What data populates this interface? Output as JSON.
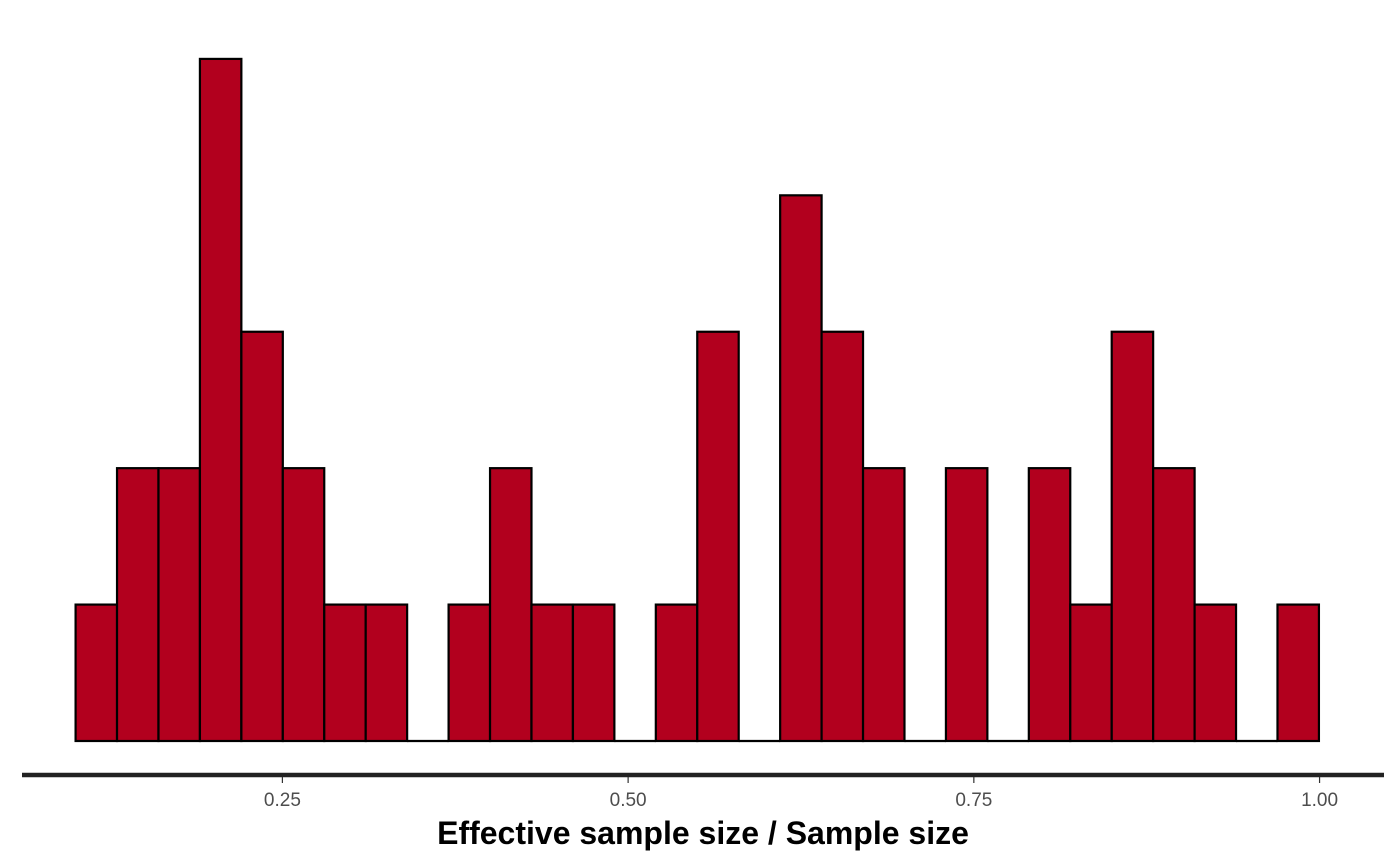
{
  "chart_data": {
    "type": "bar",
    "subtype": "histogram",
    "xlabel": "Effective sample size / Sample size",
    "ylabel": "",
    "x_ticks": [
      0.25,
      0.5,
      0.75,
      1.0
    ],
    "x_tick_labels": [
      "0.25",
      "0.50",
      "0.75",
      "1.00"
    ],
    "xlim": [
      0.0617,
      1.0466
    ],
    "y_axis_visible": false,
    "grid": false,
    "bin_width": 0.02997,
    "bin_starts": [
      0.10045,
      0.13042,
      0.16039,
      0.19036,
      0.22033,
      0.2503,
      0.28027,
      0.31024,
      0.34021,
      0.37018,
      0.40015,
      0.43012,
      0.46009,
      0.49006,
      0.52003,
      0.55,
      0.57997,
      0.60994,
      0.63991,
      0.66988,
      0.69985,
      0.72982,
      0.75979,
      0.78976,
      0.81973,
      0.8497,
      0.87967,
      0.90964,
      0.93961,
      0.96958
    ],
    "counts": [
      1,
      2,
      2,
      5,
      3,
      2,
      1,
      1,
      0,
      1,
      2,
      1,
      1,
      0,
      1,
      3,
      0,
      4,
      3,
      2,
      0,
      2,
      0,
      2,
      1,
      3,
      2,
      1,
      0,
      1
    ],
    "ylim": [
      0,
      5.08
    ],
    "bar_fill": "#b2001e",
    "bar_outline": "#000000"
  }
}
